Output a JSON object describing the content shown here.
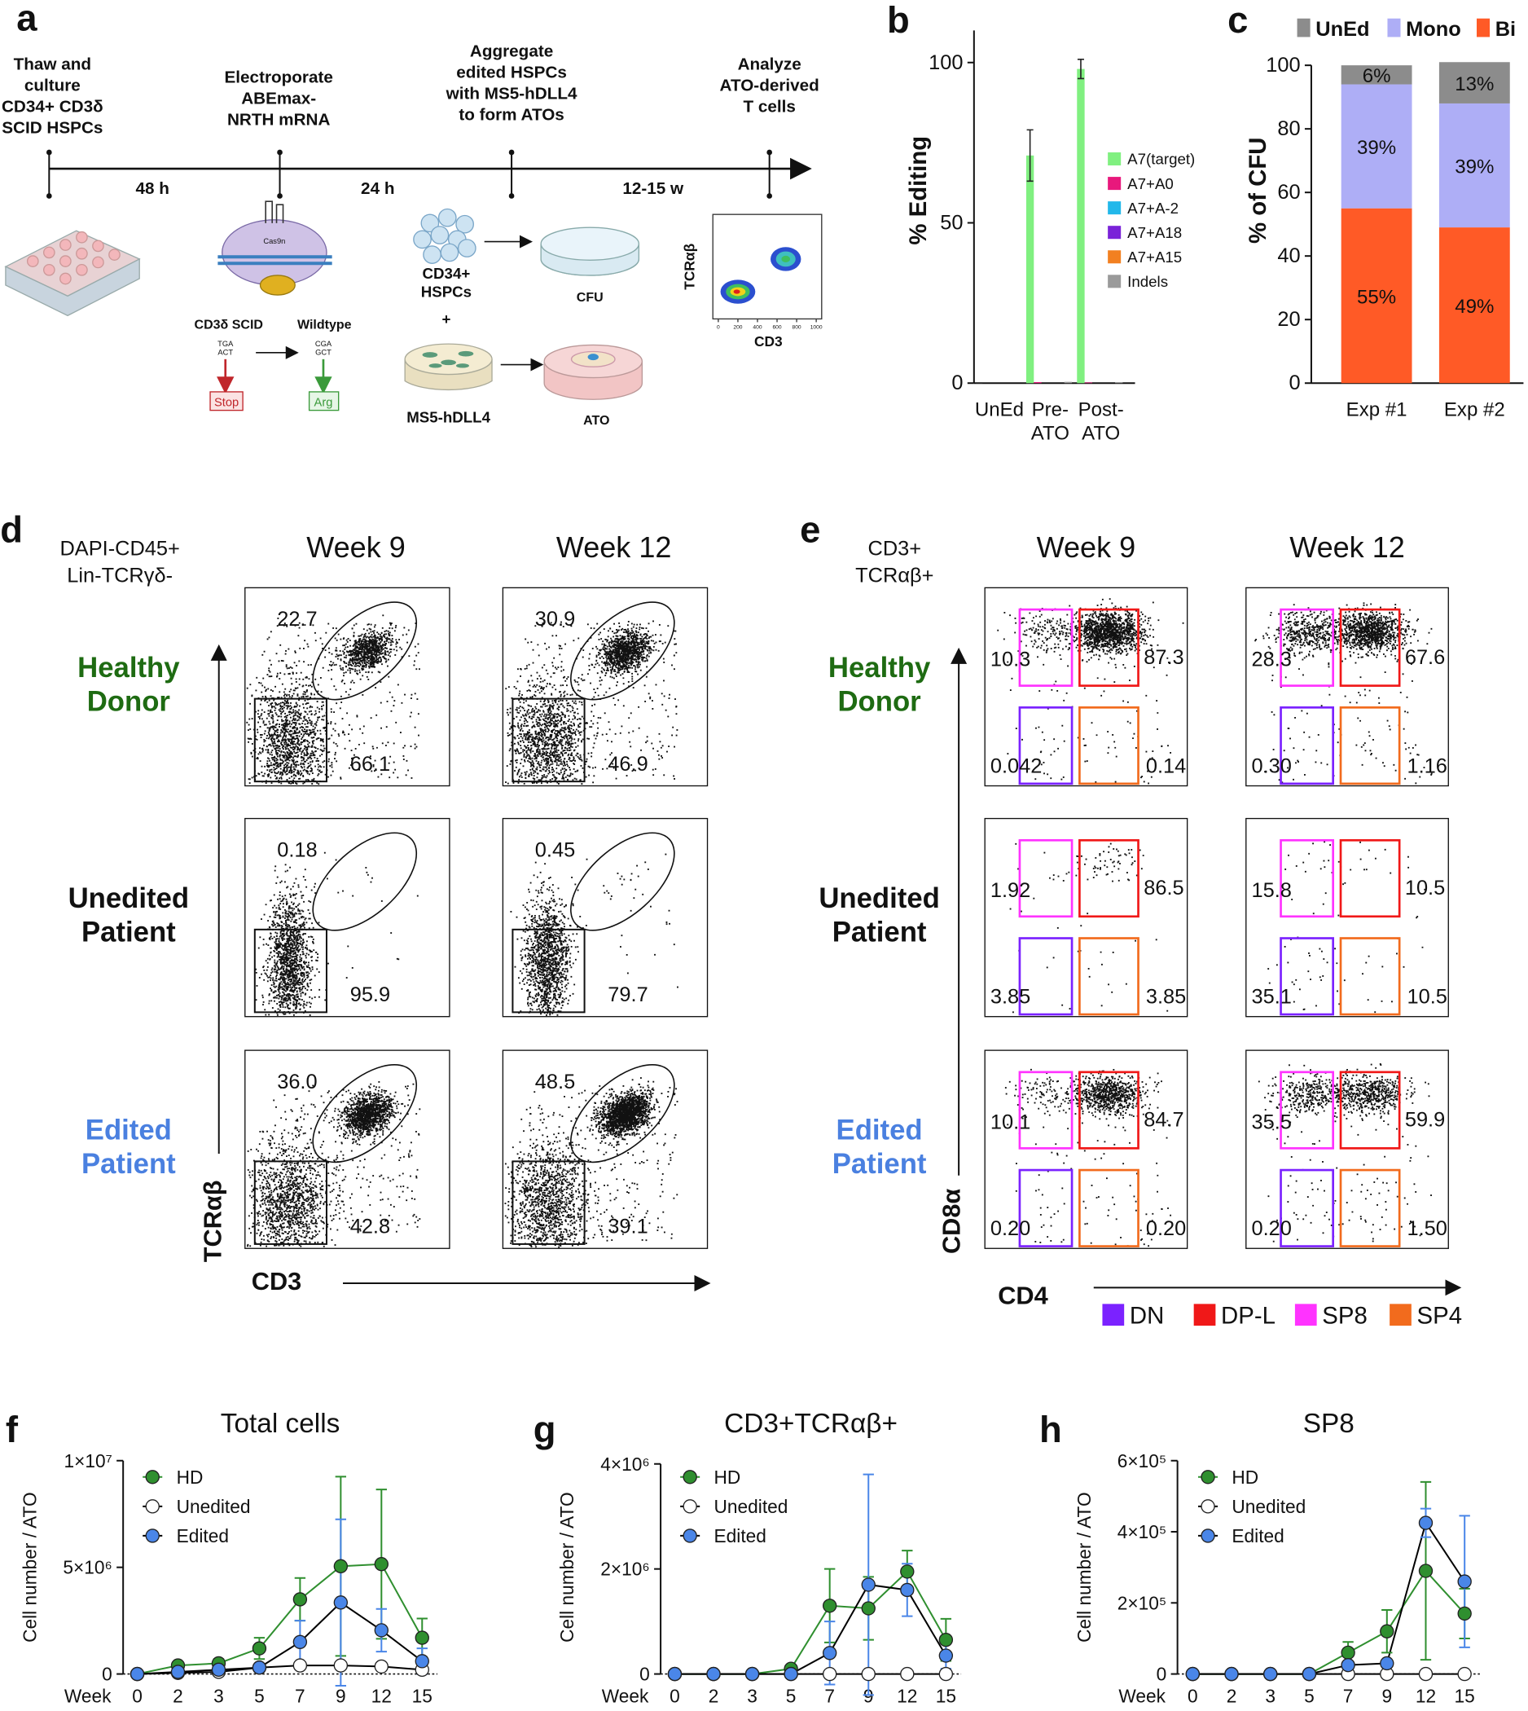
{
  "panel_labels": [
    "a",
    "b",
    "c",
    "d",
    "e",
    "f",
    "g",
    "h"
  ],
  "schematic": {
    "steps": [
      "Thaw and\nculture\nCD34+ CD3δ\nSCID HSPCs",
      "Electroporate\nABEmax-\nNRTH mRNA",
      "Aggregate\nedited HSPCs\nwith MS5-hDLL4\nto form ATOs",
      "Analyze\nATO-derived\nT cells"
    ],
    "intervals": [
      "48 h",
      "24 h",
      "12-15 w"
    ],
    "cas9": "Cas9n",
    "mutation": {
      "from": "CD3δ SCID",
      "to": "Wildtype",
      "from_codon": "TGA\nACT",
      "to_codon": "CGA\nGCT",
      "stop": "Stop",
      "arg": "Arg"
    },
    "cells": "CD34+\nHSPCs",
    "plus": "+",
    "stroma": "MS5-hDLL4",
    "cfu": "CFU",
    "ato": "ATO",
    "mini_plot": {
      "y_label": "TCRαβ",
      "x_label": "CD3",
      "xticks": [
        0,
        200,
        400,
        600,
        800,
        1000
      ]
    }
  },
  "chart_data": [
    {
      "type": "bar",
      "y_label": "% Editing",
      "categories": [
        "UnEd",
        "Pre-\nATO",
        "Post-\nATO"
      ],
      "ylim": [
        0,
        110
      ],
      "yticks": [
        0,
        50,
        100
      ],
      "series": [
        {
          "name": "A7(target)",
          "color": "#80f080",
          "values": [
            0,
            71,
            98
          ],
          "errors": [
            0,
            8,
            3
          ]
        },
        {
          "name": "A7+A0",
          "color": "#e8187c",
          "values": [
            0,
            0.3,
            0.2
          ]
        },
        {
          "name": "A7+A-2",
          "color": "#22b8ea",
          "values": [
            0,
            0,
            0
          ]
        },
        {
          "name": "A7+A18",
          "color": "#7a22d8",
          "values": [
            0,
            0,
            0
          ]
        },
        {
          "name": "A7+A15",
          "color": "#f28021",
          "values": [
            0,
            0,
            0
          ]
        },
        {
          "name": "Indels",
          "color": "#9a9a9a",
          "values": [
            0,
            0.4,
            0.3
          ]
        }
      ]
    },
    {
      "type": "stacked_bar",
      "y_label": "% of CFU",
      "categories": [
        "Exp #1",
        "Exp #2"
      ],
      "ylim": [
        0,
        100
      ],
      "yticks": [
        0,
        20,
        40,
        60,
        80,
        100
      ],
      "series": [
        {
          "name": "UnEd",
          "color": "#8c8c8c",
          "values": [
            6,
            13
          ],
          "value_labels": [
            "6%",
            "13%"
          ]
        },
        {
          "name": "Mono",
          "color": "#aeaef6",
          "values": [
            39,
            39
          ],
          "value_labels": [
            "39%",
            "39%"
          ]
        },
        {
          "name": "Bi",
          "color": "#ff5a26",
          "values": [
            55,
            49
          ],
          "value_labels": [
            "55%",
            "49%"
          ]
        }
      ]
    },
    {
      "type": "line",
      "title": "Total cells",
      "y_label": "Cell number / ATO",
      "x_label": "Week",
      "categories": [
        "0",
        "2",
        "3",
        "5",
        "7",
        "9",
        "12",
        "15"
      ],
      "ylim": [
        0,
        10000000
      ],
      "yticks": [
        0,
        {
          "value": 5000000,
          "label": "5×10⁶"
        },
        {
          "value": 10000000,
          "label": "1×10⁷"
        }
      ],
      "series": [
        {
          "name": "HD",
          "color": "#2f8f2f",
          "line_color": "#2f8f2f",
          "values": [
            0,
            400000,
            500000,
            1200000,
            3500000,
            5050000,
            5150000,
            1700000
          ],
          "errors": [
            0,
            100000,
            200000,
            500000,
            1000000,
            4200000,
            3500000,
            900000
          ]
        },
        {
          "name": "Unedited",
          "color": "#ffffff",
          "line_color": "#000000",
          "values": [
            0,
            50000,
            100000,
            300000,
            400000,
            400000,
            350000,
            200000
          ]
        },
        {
          "name": "Edited",
          "color": "#4a86e8",
          "line_color": "#000000",
          "values": [
            0,
            100000,
            200000,
            300000,
            1500000,
            3350000,
            2050000,
            600000
          ],
          "errors": [
            0,
            0,
            100000,
            200000,
            1000000,
            3900000,
            1000000,
            600000
          ]
        }
      ]
    },
    {
      "type": "line",
      "title": "CD3+TCRαβ+",
      "y_label": "Cell number / ATO",
      "x_label": "Week",
      "categories": [
        "0",
        "2",
        "3",
        "5",
        "7",
        "9",
        "12",
        "15"
      ],
      "ylim": [
        0,
        4000000
      ],
      "yticks": [
        0,
        {
          "value": 2000000,
          "label": "2×10⁶"
        },
        {
          "value": 4000000,
          "label": "4×10⁶"
        }
      ],
      "series": [
        {
          "name": "HD",
          "color": "#2f8f2f",
          "line_color": "#2f8f2f",
          "values": [
            0,
            0,
            0,
            100000,
            1300000,
            1250000,
            1950000,
            650000
          ],
          "errors": [
            0,
            0,
            0,
            50000,
            700000,
            600000,
            400000,
            400000
          ]
        },
        {
          "name": "Unedited",
          "color": "#ffffff",
          "line_color": "#000000",
          "values": [
            0,
            0,
            0,
            0,
            0,
            0,
            0,
            0
          ]
        },
        {
          "name": "Edited",
          "color": "#4a86e8",
          "line_color": "#000000",
          "values": [
            0,
            0,
            0,
            0,
            400000,
            1700000,
            1600000,
            350000
          ],
          "errors": [
            0,
            0,
            0,
            0,
            600000,
            2100000,
            500000,
            250000
          ]
        }
      ]
    },
    {
      "type": "line",
      "title": "SP8",
      "y_label": "Cell number / ATO",
      "x_label": "Week",
      "categories": [
        "0",
        "2",
        "3",
        "5",
        "7",
        "9",
        "12",
        "15"
      ],
      "ylim": [
        0,
        600000
      ],
      "yticks": [
        0,
        {
          "value": 200000,
          "label": "2×10⁵"
        },
        {
          "value": 400000,
          "label": "4×10⁵"
        },
        {
          "value": 600000,
          "label": "6×10⁵"
        }
      ],
      "series": [
        {
          "name": "HD",
          "color": "#2f8f2f",
          "line_color": "#2f8f2f",
          "values": [
            0,
            0,
            0,
            0,
            60000,
            120000,
            290000,
            170000
          ],
          "errors": [
            0,
            0,
            0,
            0,
            30000,
            60000,
            250000,
            70000
          ]
        },
        {
          "name": "Unedited",
          "color": "#ffffff",
          "line_color": "#000000",
          "values": [
            0,
            0,
            0,
            0,
            0,
            0,
            0,
            0
          ]
        },
        {
          "name": "Edited",
          "color": "#4a86e8",
          "line_color": "#000000",
          "values": [
            0,
            0,
            0,
            0,
            25000,
            30000,
            425000,
            260000
          ],
          "errors": [
            0,
            0,
            0,
            5000,
            10000,
            10000,
            40000,
            185000
          ]
        }
      ]
    }
  ],
  "flow_d": {
    "header": "DAPI-CD45+\nLin-TCRγδ-",
    "columns": [
      "Week 9",
      "Week 12"
    ],
    "y_axis": "TCRαβ",
    "x_axis": "CD3",
    "rows": [
      {
        "label": "Healthy\nDonor",
        "color": "#1e6b12",
        "plots": [
          {
            "top": "22.7",
            "bottom": "66.1"
          },
          {
            "top": "30.9",
            "bottom": "46.9"
          }
        ]
      },
      {
        "label": "Unedited\nPatient",
        "color": "#111111",
        "plots": [
          {
            "top": "0.18",
            "bottom": "95.9"
          },
          {
            "top": "0.45",
            "bottom": "79.7"
          }
        ]
      },
      {
        "label": "Edited\nPatient",
        "color": "#4a80e0",
        "plots": [
          {
            "top": "36.0",
            "bottom": "42.8"
          },
          {
            "top": "48.5",
            "bottom": "39.1"
          }
        ]
      }
    ]
  },
  "flow_e": {
    "header": "CD3+\nTCRαβ+",
    "columns": [
      "Week 9",
      "Week 12"
    ],
    "y_axis": "CD8α",
    "x_axis": "CD4",
    "legend": [
      {
        "name": "DN",
        "color": "#7b22ff"
      },
      {
        "name": "DP-L",
        "color": "#f01818"
      },
      {
        "name": "SP8",
        "color": "#ff33ff"
      },
      {
        "name": "SP4",
        "color": "#f26b1d"
      }
    ],
    "rows": [
      {
        "label": "Healthy\nDonor",
        "color": "#1e6b12",
        "plots": [
          {
            "sp8": "10.3",
            "dp_l": "87.3",
            "dn": "0.042",
            "sp4": "0.14"
          },
          {
            "sp8": "28.3",
            "dp_l": "67.6",
            "dn": "0.30",
            "sp4": "1.16"
          }
        ]
      },
      {
        "label": "Unedited\nPatient",
        "color": "#111111",
        "plots": [
          {
            "sp8": "1.92",
            "dp_l": "86.5",
            "dn": "3.85",
            "sp4": "3.85"
          },
          {
            "sp8": "15.8",
            "dp_l": "10.5",
            "dn": "35.1",
            "sp4": "10.5"
          }
        ]
      },
      {
        "label": "Edited\nPatient",
        "color": "#4a80e0",
        "plots": [
          {
            "sp8": "10.1",
            "dp_l": "84.7",
            "dn": "0.20",
            "sp4": "0.20"
          },
          {
            "sp8": "35.5",
            "dp_l": "59.9",
            "dn": "0.20",
            "sp4": "1.50"
          }
        ]
      }
    ]
  }
}
